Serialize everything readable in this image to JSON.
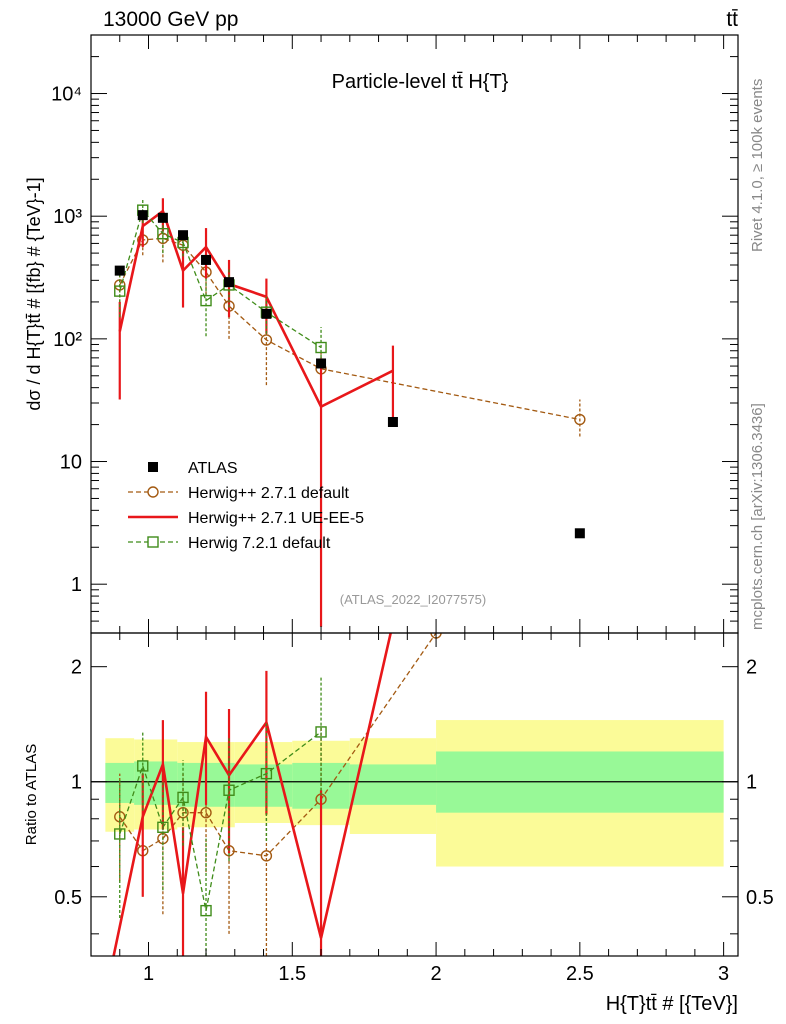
{
  "header": {
    "left": "13000 GeV pp",
    "right": "tt̄"
  },
  "side_labels": {
    "top": "Rivet 4.1.0, ≥ 100k events",
    "bottom": "mcplots.cern.ch [arXiv:1306.3436]"
  },
  "colors": {
    "atlas": "#000000",
    "herwig_default": "#a35a12",
    "herwig_ueee5": "#e8171a",
    "herwig7": "#3f8c19",
    "band_inner": "#98f997",
    "band_outer": "#fbfb98"
  },
  "chart_data": [
    {
      "type": "line",
      "title": "Particle-level tt̄ H{T}",
      "analysis_tag": "(ATLAS_2022_I2077575)",
      "xlabel": "H{T}tt̄ # [{TeV}]",
      "ylabel": "dσ / d H{T}tt̄ # [{fb} # {TeV}-1]",
      "yscale": "log",
      "xlim": [
        0.8,
        3.05
      ],
      "ylim": [
        0.4,
        30000
      ],
      "y_ticks": [
        {
          "value": 1,
          "label": "1"
        },
        {
          "value": 10,
          "label": "10"
        },
        {
          "value": 100,
          "label": "10²"
        },
        {
          "value": 1000,
          "label": "10³"
        },
        {
          "value": 10000,
          "label": "10⁴"
        }
      ],
      "legend": [
        "ATLAS",
        "Herwig++ 2.7.1 default",
        "Herwig++ 2.7.1 UE-EE-5",
        "Herwig 7.2.1 default"
      ],
      "series": [
        {
          "name": "ATLAS",
          "style": "markers-square",
          "x": [
            0.9,
            0.98,
            1.05,
            1.12,
            1.2,
            1.28,
            1.41,
            1.6,
            1.85,
            2.5
          ],
          "y": [
            360,
            1020,
            970,
            700,
            440,
            290,
            160,
            63,
            21,
            2.6
          ]
        },
        {
          "name": "Herwig++ 2.7.1 default",
          "style": "dashed-circle",
          "x": [
            0.9,
            0.98,
            1.05,
            1.12,
            1.2,
            1.28,
            1.41,
            1.6,
            2.5
          ],
          "y": [
            275,
            640,
            660,
            580,
            350,
            185,
            98,
            57,
            22
          ],
          "y_low": [
            180,
            480,
            420,
            420,
            230,
            100,
            42,
            35,
            16
          ],
          "y_high": [
            370,
            850,
            900,
            750,
            460,
            260,
            150,
            80,
            32
          ]
        },
        {
          "name": "Herwig++ 2.7.1 UE-EE-5",
          "style": "solid-line",
          "x": [
            0.9,
            0.98,
            1.05,
            1.12,
            1.2,
            1.28,
            1.41,
            1.6,
            1.85
          ],
          "y": [
            115,
            830,
            1100,
            360,
            560,
            280,
            220,
            28,
            55
          ],
          "y_low": [
            32,
            560,
            750,
            180,
            310,
            150,
            110,
            0.45,
            22
          ],
          "y_high": [
            200,
            1080,
            1400,
            530,
            800,
            440,
            310,
            60,
            88
          ]
        },
        {
          "name": "Herwig 7.2.1 default",
          "style": "dashed-square",
          "x": [
            0.9,
            0.98,
            1.05,
            1.12,
            1.2,
            1.28,
            1.41,
            1.6
          ],
          "y": [
            245,
            1120,
            720,
            610,
            205,
            275,
            165,
            85
          ],
          "y_low": [
            150,
            880,
            500,
            470,
            105,
            180,
            110,
            58
          ],
          "y_high": [
            340,
            1360,
            940,
            760,
            310,
            380,
            220,
            125
          ]
        }
      ]
    },
    {
      "type": "line",
      "title": "",
      "xlabel": "H{T}tt̄ # [{TeV}]",
      "ylabel": "Ratio to ATLAS",
      "yscale": "log",
      "xlim": [
        0.8,
        3.05
      ],
      "ylim": [
        0.35,
        2.45
      ],
      "x_ticks": [
        {
          "value": 1,
          "label": "1"
        },
        {
          "value": 1.5,
          "label": "1.5"
        },
        {
          "value": 2,
          "label": "2"
        },
        {
          "value": 2.5,
          "label": "2.5"
        },
        {
          "value": 3,
          "label": "3"
        }
      ],
      "y_ticks": [
        {
          "value": 0.5,
          "label": "0.5"
        },
        {
          "value": 1,
          "label": "1"
        },
        {
          "value": 2,
          "label": "2"
        }
      ],
      "reference_line": 1,
      "bands": [
        {
          "x0": 0.85,
          "x1": 0.95,
          "inner": [
            0.88,
            1.12
          ],
          "outer": [
            0.74,
            1.3
          ]
        },
        {
          "x0": 0.95,
          "x1": 1.1,
          "inner": [
            0.87,
            1.13
          ],
          "outer": [
            0.75,
            1.29
          ]
        },
        {
          "x0": 1.1,
          "x1": 1.3,
          "inner": [
            0.86,
            1.12
          ],
          "outer": [
            0.76,
            1.27
          ]
        },
        {
          "x0": 1.3,
          "x1": 1.5,
          "inner": [
            0.86,
            1.11
          ],
          "outer": [
            0.78,
            1.27
          ]
        },
        {
          "x0": 1.5,
          "x1": 1.7,
          "inner": [
            0.85,
            1.12
          ],
          "outer": [
            0.77,
            1.28
          ]
        },
        {
          "x0": 1.7,
          "x1": 2.0,
          "inner": [
            0.87,
            1.11
          ],
          "outer": [
            0.73,
            1.3
          ]
        },
        {
          "x0": 2.0,
          "x1": 3.0,
          "inner": [
            0.83,
            1.2
          ],
          "outer": [
            0.6,
            1.45
          ]
        }
      ],
      "series": [
        {
          "name": "Herwig++ 2.7.1 default",
          "style": "dashed-circle",
          "x": [
            0.9,
            0.98,
            1.05,
            1.12,
            1.2,
            1.28,
            1.41,
            1.6,
            2.0
          ],
          "y": [
            0.81,
            0.66,
            0.71,
            0.83,
            0.83,
            0.66,
            0.64,
            0.9,
            2.45
          ],
          "y_low": [
            0.55,
            0.5,
            0.45,
            0.62,
            0.58,
            0.4,
            0.35,
            0.35,
            null
          ],
          "y_high": [
            1.05,
            0.82,
            0.97,
            1.05,
            1.12,
            0.9,
            0.9,
            1.4,
            null
          ]
        },
        {
          "name": "Herwig++ 2.7.1 UE-EE-5",
          "style": "solid-line",
          "x": [
            0.86,
            0.98,
            1.05,
            1.12,
            1.2,
            1.28,
            1.41,
            1.6,
            1.85
          ],
          "y": [
            0.3,
            0.81,
            1.11,
            0.51,
            1.31,
            1.04,
            1.43,
            0.39,
            2.6
          ],
          "y_low": [
            null,
            0.5,
            0.75,
            0.3,
            0.87,
            0.65,
            0.82,
            0.35,
            null
          ],
          "y_high": [
            null,
            1.05,
            1.45,
            0.76,
            1.72,
            1.55,
            1.95,
            0.95,
            null
          ]
        },
        {
          "name": "Herwig 7.2.1 default",
          "style": "dashed-square",
          "x": [
            0.9,
            0.98,
            1.05,
            1.12,
            1.2,
            1.28,
            1.41,
            1.6
          ],
          "y": [
            0.73,
            1.1,
            0.76,
            0.91,
            0.46,
            0.95,
            1.05,
            1.35
          ],
          "y_low": [
            0.44,
            0.84,
            0.52,
            0.68,
            0.35,
            0.62,
            0.7,
            0.92
          ],
          "y_high": [
            1.02,
            1.35,
            1.0,
            1.14,
            0.71,
            1.3,
            1.42,
            1.88
          ]
        }
      ]
    }
  ]
}
